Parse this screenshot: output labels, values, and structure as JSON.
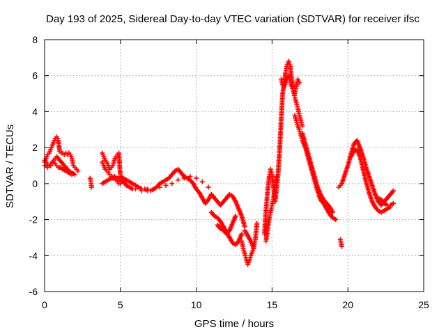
{
  "chart_data": {
    "type": "scatter",
    "title": "Day 193 of 2025, Sidereal Day-to-day VTEC variation (SDTVAR) for receiver ifsc",
    "xlabel": "GPS time / hours",
    "ylabel": "SDTVAR / TECUs",
    "xlim": [
      0,
      25
    ],
    "ylim": [
      -6,
      8
    ],
    "xticks": [
      0,
      5,
      10,
      15,
      20,
      25
    ],
    "yticks": [
      -6,
      -4,
      -2,
      0,
      2,
      4,
      6,
      8
    ],
    "grid": true,
    "marker": "+",
    "marker_color": "#ff0000",
    "series": [
      {
        "name": "SDTVAR",
        "x": [
          0.0,
          0.1,
          0.2,
          0.3,
          0.4,
          0.5,
          0.6,
          0.7,
          0.8,
          0.9,
          1.0,
          1.1,
          1.2,
          1.3,
          1.4,
          1.5,
          1.6,
          1.7,
          1.8,
          1.9,
          2.0,
          2.1,
          2.2,
          0.0,
          0.1,
          0.2,
          0.3,
          0.4,
          0.5,
          0.6,
          0.7,
          0.8,
          0.9,
          1.0,
          1.2,
          1.4,
          1.6,
          1.8,
          0.0,
          0.1,
          0.2,
          0.3,
          0.4,
          0.5,
          0.6,
          0.7,
          0.8,
          1.0,
          1.2,
          1.4,
          1.6,
          1.8,
          2.0,
          3.0,
          3.05,
          3.1,
          3.8,
          3.9,
          4.0,
          4.1,
          4.2,
          4.3,
          4.4,
          4.5,
          4.6,
          4.7,
          4.8,
          4.9,
          5.0,
          5.2,
          5.4,
          5.6,
          5.8,
          6.0,
          6.2,
          6.4,
          6.6,
          6.8,
          7.0,
          7.2,
          7.4,
          7.6,
          7.8,
          8.0,
          8.2,
          8.4,
          8.6,
          8.8,
          9.0,
          9.2,
          9.4,
          9.6,
          9.8,
          10.0,
          10.2,
          10.4,
          10.6,
          10.8,
          11.0,
          3.8,
          4.0,
          4.2,
          4.4,
          4.6,
          4.8,
          5.0,
          5.2,
          5.4,
          5.6,
          5.8,
          6.0,
          6.4,
          6.8,
          7.2,
          7.6,
          8.0,
          8.4,
          8.8,
          9.2,
          9.6,
          10.0,
          10.4,
          10.8,
          3.8,
          3.9,
          4.0,
          4.1,
          4.2,
          4.3,
          4.4,
          4.5,
          4.6,
          4.7,
          4.8,
          4.9,
          5.0,
          11.0,
          11.2,
          11.4,
          11.6,
          11.8,
          12.0,
          12.2,
          12.4,
          12.6,
          12.8,
          13.0,
          13.2,
          11.0,
          11.2,
          11.4,
          11.6,
          11.8,
          12.0,
          12.2,
          12.4,
          12.6,
          12.8,
          13.0,
          11.4,
          11.6,
          11.8,
          12.0,
          12.2,
          12.4,
          12.6,
          13.0,
          13.1,
          13.2,
          13.3,
          13.4,
          13.5,
          13.6,
          13.7,
          13.8,
          13.9,
          14.0,
          13.2,
          13.4,
          13.6,
          13.8,
          14.5,
          14.6,
          14.7,
          14.8,
          14.9,
          15.0,
          15.1,
          15.2,
          15.3,
          15.4,
          15.5,
          15.6,
          15.7,
          15.8,
          15.9,
          16.0,
          16.1,
          16.2,
          16.3,
          16.4,
          16.5,
          16.6,
          16.7,
          16.8,
          16.9,
          17.0,
          14.6,
          14.7,
          14.8,
          14.9,
          15.0,
          15.1,
          15.2,
          15.3,
          15.6,
          15.7,
          15.8,
          15.9,
          16.0,
          16.1,
          16.2,
          16.3,
          16.4,
          16.5,
          16.6,
          16.7,
          16.8,
          16.5,
          16.6,
          16.7,
          16.8,
          16.9,
          17.0,
          17.2,
          17.4,
          17.6,
          17.8,
          18.0,
          18.2,
          18.4,
          18.6,
          18.8,
          19.0,
          19.2,
          17.0,
          17.2,
          17.4,
          17.6,
          17.8,
          18.0,
          18.2,
          18.4,
          18.6,
          18.8,
          19.0,
          19.5,
          19.55,
          19.6,
          19.4,
          19.5,
          19.6,
          19.8,
          20.0,
          20.2,
          20.4,
          20.6,
          20.8,
          21.0,
          21.2,
          21.4,
          21.6,
          21.8,
          22.0,
          22.2,
          22.4,
          22.6,
          22.8,
          23.0,
          20.2,
          20.4,
          20.6,
          20.8,
          21.0,
          21.2,
          21.4,
          21.6,
          21.8,
          22.0,
          22.2,
          22.4,
          22.6,
          22.8,
          22.0,
          22.2,
          22.4,
          22.6,
          22.8,
          23.0
        ],
        "y": [
          1.2,
          1.4,
          1.6,
          1.7,
          1.9,
          2.1,
          2.3,
          2.5,
          2.6,
          2.4,
          1.8,
          1.7,
          1.7,
          1.6,
          1.7,
          1.6,
          1.7,
          1.6,
          1.4,
          1.0,
          0.9,
          0.8,
          0.7,
          1.0,
          1.0,
          0.9,
          1.0,
          1.1,
          1.2,
          1.2,
          1.1,
          1.0,
          0.9,
          0.9,
          0.8,
          0.7,
          0.6,
          0.5,
          1.3,
          1.2,
          1.1,
          1.0,
          1.0,
          1.1,
          1.3,
          1.4,
          1.5,
          1.3,
          1.1,
          0.9,
          0.7,
          0.6,
          0.5,
          0.3,
          0.1,
          -0.2,
          1.7,
          1.5,
          1.3,
          1.2,
          1.0,
          0.8,
          0.9,
          1.0,
          1.3,
          1.5,
          1.6,
          1.7,
          0.4,
          0.3,
          0.2,
          0.1,
          0.0,
          -0.1,
          -0.2,
          -0.3,
          -0.3,
          -0.4,
          -0.4,
          -0.3,
          -0.2,
          0.0,
          0.1,
          0.2,
          0.3,
          0.5,
          0.7,
          0.8,
          0.6,
          0.4,
          0.3,
          0.2,
          0.0,
          -0.3,
          -0.5,
          -0.8,
          -1.1,
          -0.9,
          -0.6,
          0.0,
          0.1,
          0.2,
          0.3,
          0.4,
          0.3,
          0.2,
          0.1,
          -0.1,
          -0.2,
          -0.3,
          -0.3,
          -0.4,
          -0.3,
          -0.3,
          -0.2,
          -0.1,
          0.0,
          0.2,
          0.3,
          0.4,
          0.3,
          0.1,
          -0.2,
          1.2,
          1.0,
          0.8,
          0.7,
          0.6,
          0.5,
          0.4,
          0.3,
          0.3,
          0.2,
          0.1,
          0.0,
          0.0,
          -0.6,
          -0.8,
          -1.0,
          -1.2,
          -1.0,
          -0.8,
          -0.6,
          -0.7,
          -1.0,
          -1.4,
          -1.8,
          -2.4,
          -1.6,
          -1.8,
          -1.9,
          -2.1,
          -2.4,
          -2.7,
          -3.0,
          -3.3,
          -3.4,
          -3.2,
          -2.8,
          -2.3,
          -2.5,
          -2.6,
          -2.8,
          -2.6,
          -2.2,
          -1.8,
          -3.2,
          -3.6,
          -3.9,
          -4.2,
          -4.5,
          -4.3,
          -4.0,
          -3.8,
          -3.5,
          -3.1,
          -2.2,
          -2.6,
          -2.9,
          -3.2,
          -3.6,
          -2.8,
          -1.5,
          -0.5,
          0.3,
          0.8,
          0.5,
          -0.2,
          -1.0,
          -0.3,
          0.6,
          1.8,
          3.5,
          5.0,
          5.6,
          6.2,
          6.6,
          6.8,
          6.5,
          5.8,
          5.2,
          4.8,
          4.5,
          4.2,
          3.8,
          3.5,
          3.2,
          -3.2,
          -2.6,
          -2.0,
          -1.6,
          -1.2,
          -0.8,
          -0.2,
          0.4,
          5.8,
          5.5,
          5.4,
          5.6,
          5.8,
          6.0,
          5.7,
          5.4,
          5.2,
          5.0,
          5.4,
          5.8,
          5.6,
          3.8,
          3.5,
          3.2,
          3.0,
          2.7,
          2.4,
          2.0,
          1.4,
          0.8,
          0.2,
          -0.4,
          -0.9,
          -1.1,
          -1.4,
          -1.7,
          -1.9,
          -2.0,
          2.8,
          2.2,
          1.6,
          1.0,
          0.4,
          -0.2,
          -0.6,
          -0.9,
          -1.1,
          -1.3,
          -1.6,
          -3.1,
          -3.3,
          -3.5,
          -0.2,
          -0.1,
          0.0,
          0.5,
          1.0,
          1.6,
          2.2,
          2.4,
          2.0,
          1.5,
          0.9,
          0.4,
          -0.1,
          -0.6,
          -1.0,
          -1.2,
          -1.0,
          -0.8,
          -0.6,
          -0.4,
          1.5,
          1.8,
          1.9,
          1.5,
          0.8,
          0.1,
          -0.5,
          -1.0,
          -1.3,
          -1.5,
          -1.6,
          -1.5,
          -1.4,
          -1.3,
          -0.8,
          -0.9,
          -1.1,
          -1.2,
          -1.2,
          -1.1
        ]
      }
    ]
  }
}
